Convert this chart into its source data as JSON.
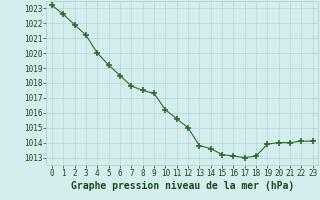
{
  "x": [
    0,
    1,
    2,
    3,
    4,
    5,
    6,
    7,
    8,
    9,
    10,
    11,
    12,
    13,
    14,
    15,
    16,
    17,
    18,
    19,
    20,
    21,
    22,
    23
  ],
  "y": [
    1023.2,
    1022.6,
    1021.9,
    1021.2,
    1020.0,
    1019.2,
    1018.5,
    1017.8,
    1017.5,
    1017.3,
    1016.2,
    1015.6,
    1015.0,
    1013.8,
    1013.6,
    1013.2,
    1013.1,
    1013.0,
    1013.1,
    1013.9,
    1014.0,
    1014.0,
    1014.1,
    1014.1
  ],
  "line_color": "#2d6a2d",
  "marker": "+",
  "marker_size": 4,
  "marker_linewidth": 1.2,
  "bg_color": "#d4eeee",
  "grid_color": "#b0cccc",
  "xlabel": "Graphe pression niveau de la mer (hPa)",
  "xlabel_color": "#1a4a1a",
  "xlabel_fontsize": 7,
  "ylim": [
    1012.5,
    1023.5
  ],
  "xlim": [
    -0.5,
    23.5
  ],
  "tick_color": "#1a4a1a",
  "tick_fontsize": 5.5,
  "line_width": 0.8
}
